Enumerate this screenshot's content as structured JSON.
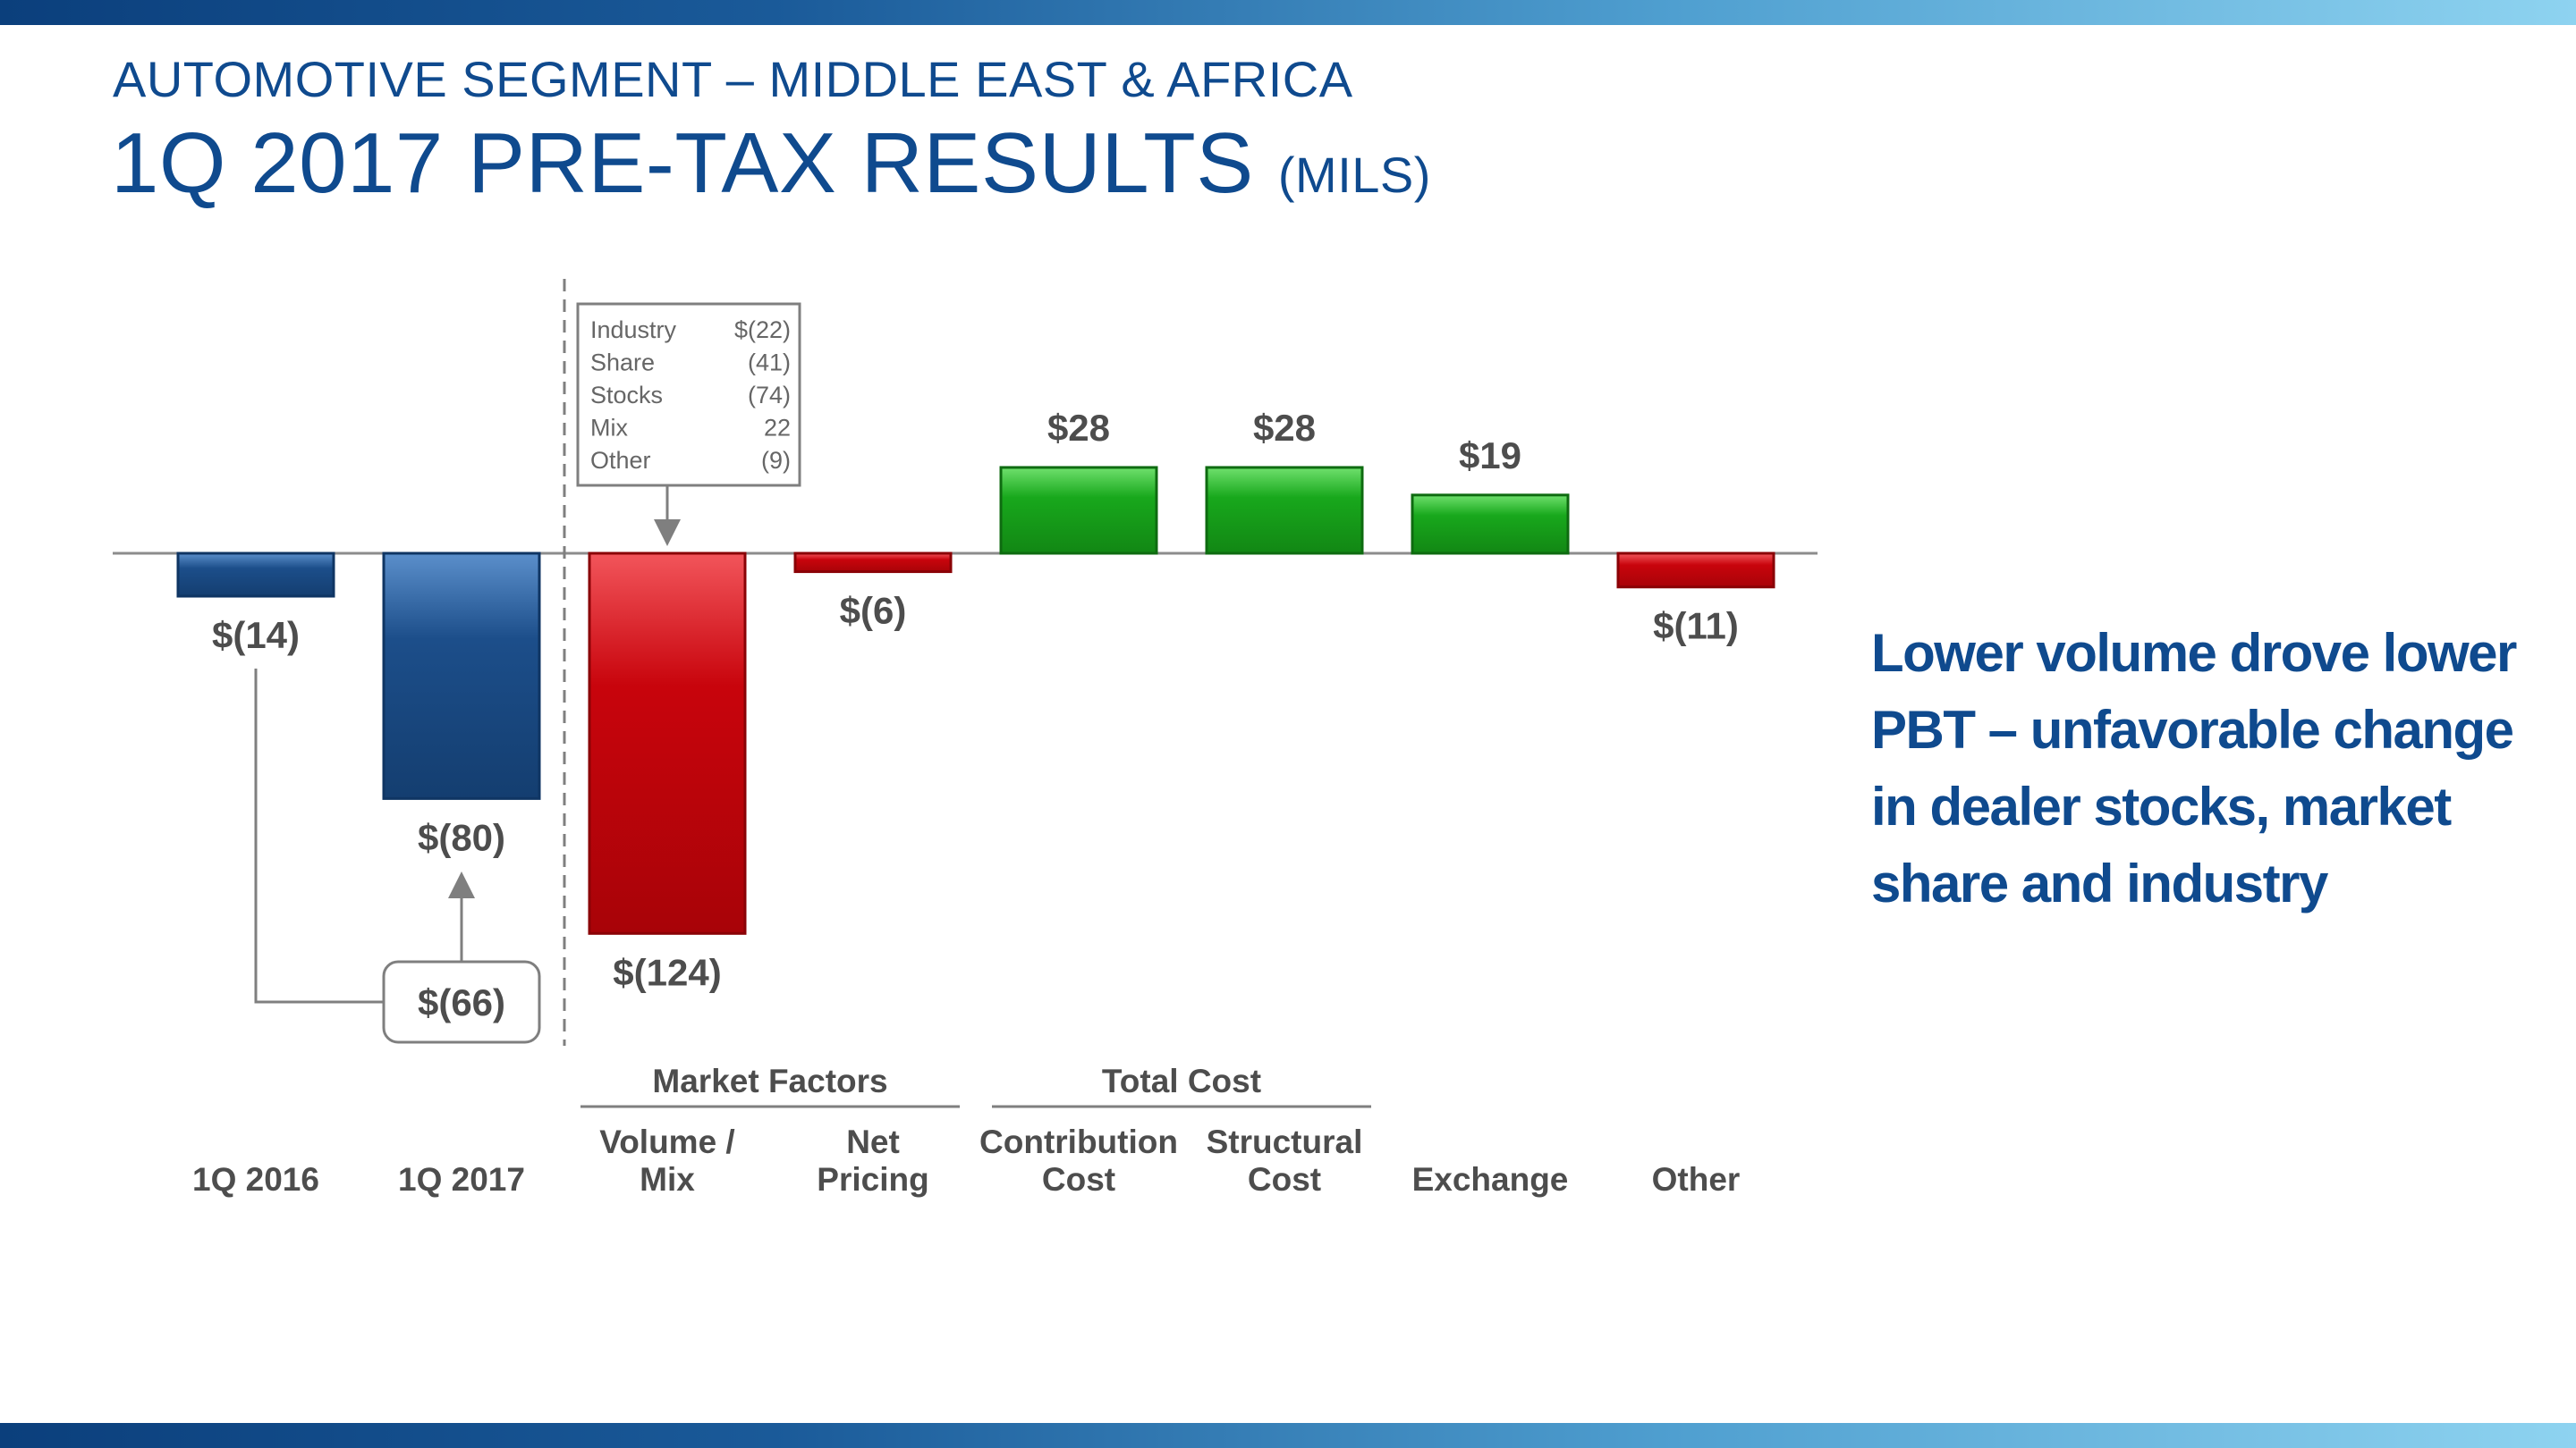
{
  "slide": {
    "subtitle": "AUTOMOTIVE SEGMENT – MIDDLE EAST & AFRICA",
    "title": "1Q 2017 PRE-TAX RESULTS",
    "title_unit": "(MILS)",
    "takeaway": "Lower volume drove lower PBT – unfavorable change in dealer stocks, market share and industry"
  },
  "colors": {
    "brand_blue": "#0f4a8e",
    "base_bar": "#1c4e8a",
    "negative_bar": "#c8040c",
    "positive_bar": "#18a81c",
    "label_gray": "#4d4d4d"
  },
  "chart_data": {
    "type": "bar",
    "units": "$ millions",
    "categories": [
      "1Q 2016",
      "1Q 2017",
      "Volume / Mix",
      "Net Pricing",
      "Contribution Cost",
      "Structural Cost",
      "Exchange",
      "Other"
    ],
    "category_lines": [
      [
        "1Q 2016"
      ],
      [
        "1Q 2017"
      ],
      [
        "Volume /",
        "Mix"
      ],
      [
        "Net",
        "Pricing"
      ],
      [
        "Contribution",
        "Cost"
      ],
      [
        "Structural",
        "Cost"
      ],
      [
        "Exchange"
      ],
      [
        "Other"
      ]
    ],
    "values": [
      -14,
      -80,
      -124,
      -6,
      28,
      28,
      19,
      -11
    ],
    "value_labels": [
      "$(14)",
      "$(80)",
      "$(124)",
      "$(6)",
      "$28",
      "$28",
      "$19",
      "$(11)"
    ],
    "bar_kinds": [
      "base",
      "base",
      "negative",
      "negative",
      "positive",
      "positive",
      "positive",
      "negative"
    ],
    "groups": [
      {
        "label": "Market Factors",
        "categories": [
          "Volume / Mix",
          "Net Pricing"
        ]
      },
      {
        "label": "Total Cost",
        "categories": [
          "Contribution Cost",
          "Structural Cost"
        ]
      }
    ],
    "change_callout": {
      "label": "$(66)",
      "value": -66,
      "from": "1Q 2016",
      "to": "1Q 2017"
    },
    "breakdown": {
      "category": "Volume / Mix",
      "rows": [
        {
          "name": "Industry",
          "value": "$(22)"
        },
        {
          "name": "Share",
          "value": "(41)"
        },
        {
          "name": "Stocks",
          "value": "(74)"
        },
        {
          "name": "Mix",
          "value": "22"
        },
        {
          "name": "Other",
          "value": "(9)"
        }
      ]
    }
  }
}
